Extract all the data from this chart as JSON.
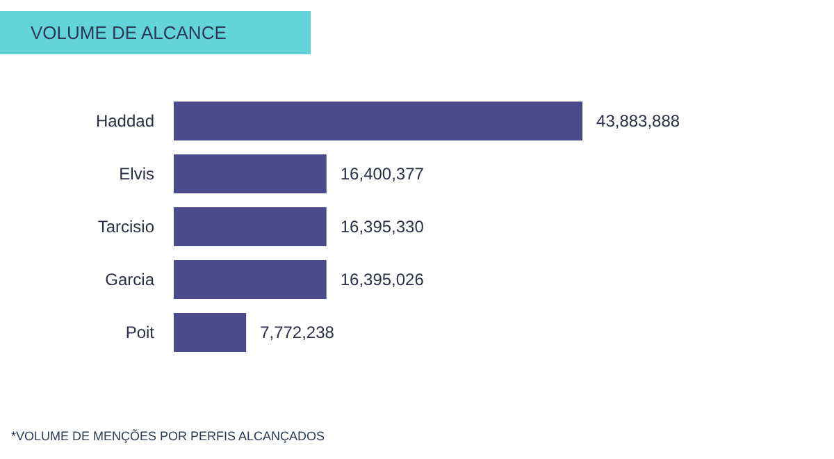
{
  "chart_data": {
    "type": "bar",
    "orientation": "horizontal",
    "title": "VOLUME DE ALCANCE",
    "categories": [
      "Haddad",
      "Elvis",
      "Tarcisio",
      "Garcia",
      "Poit"
    ],
    "values": [
      43883888,
      16400377,
      16395330,
      16395026,
      7772238
    ],
    "value_labels": [
      "43,883,888",
      "16,400,377",
      "16,395,330",
      "16,395,026",
      "7,772,238"
    ],
    "color": "#4b4a8a",
    "annotations": [
      "*VOLUME DE MENÇÕES POR PERFIS ALCANÇADOS"
    ]
  }
}
